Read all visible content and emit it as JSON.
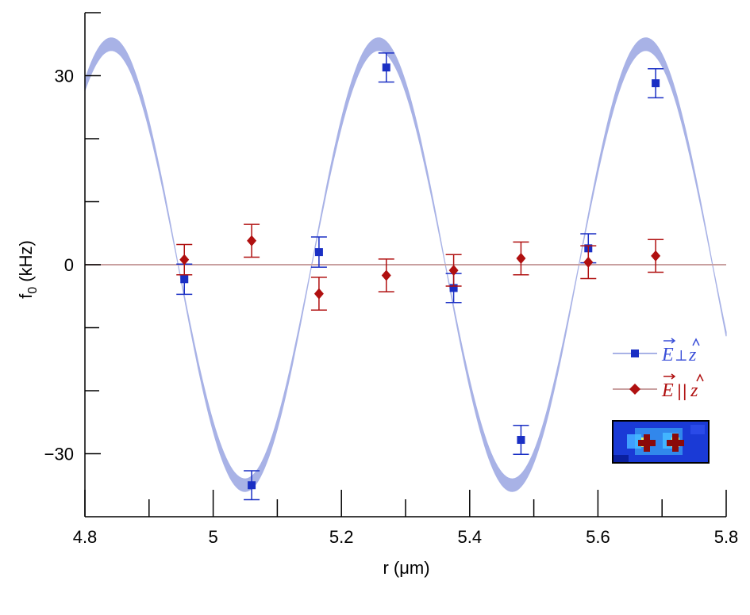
{
  "chart_data": {
    "type": "scatter",
    "xlabel": "r (μm)",
    "ylabel_main": "f",
    "ylabel_sub": "0",
    "ylabel_unit": " (kHz)",
    "xlim": [
      4.8,
      5.8
    ],
    "ylim": [
      -40,
      40
    ],
    "x_ticks": [
      {
        "value": 4.8,
        "label": "4.8"
      },
      {
        "value": 5.0,
        "label": "5"
      },
      {
        "value": 5.2,
        "label": "5.2"
      },
      {
        "value": 5.4,
        "label": "5.4"
      },
      {
        "value": 5.6,
        "label": "5.6"
      },
      {
        "value": 5.8,
        "label": "5.8"
      }
    ],
    "x_minor_ticks": [
      4.9,
      5.1,
      5.3,
      5.5,
      5.7
    ],
    "y_ticks": [
      {
        "value": 30,
        "label": "30"
      },
      {
        "value": 0,
        "label": "0"
      },
      {
        "value": -30,
        "label": "−30"
      }
    ],
    "y_minor_ticks": [
      20,
      10,
      -10,
      -20
    ],
    "fit_curve": {
      "amplitude_band": [
        34.0,
        36.0
      ],
      "period": 0.4167,
      "phase_origin": 4.8,
      "color": "#a8b2e6"
    },
    "series": [
      {
        "name": "E⃗ ⟂ ẑ",
        "legend_text_E": "E",
        "legend_text_rel": "⟂",
        "legend_text_z": "z",
        "marker": "square",
        "color": "#1a2fc4",
        "line_color": "#a8b2e6",
        "points": [
          {
            "x": 4.955,
            "y": -2.3,
            "err": 2.4
          },
          {
            "x": 5.06,
            "y": -35.0,
            "err": 2.3
          },
          {
            "x": 5.165,
            "y": 2.0,
            "err": 2.4
          },
          {
            "x": 5.27,
            "y": 31.3,
            "err": 2.3
          },
          {
            "x": 5.375,
            "y": -3.7,
            "err": 2.3
          },
          {
            "x": 5.48,
            "y": -27.8,
            "err": 2.3
          },
          {
            "x": 5.585,
            "y": 2.6,
            "err": 2.3
          },
          {
            "x": 5.69,
            "y": 28.8,
            "err": 2.3
          }
        ]
      },
      {
        "name": "E⃗ || ẑ",
        "legend_text_E": "E",
        "legend_text_rel": "||",
        "legend_text_z": "z",
        "marker": "diamond",
        "color": "#b01010",
        "line_color": "#c9a0a0",
        "points": [
          {
            "x": 4.955,
            "y": 0.8,
            "err": 2.4
          },
          {
            "x": 5.06,
            "y": 3.8,
            "err": 2.6
          },
          {
            "x": 5.165,
            "y": -4.6,
            "err": 2.6
          },
          {
            "x": 5.27,
            "y": -1.7,
            "err": 2.6
          },
          {
            "x": 5.375,
            "y": -0.9,
            "err": 2.5
          },
          {
            "x": 5.48,
            "y": 1.0,
            "err": 2.6
          },
          {
            "x": 5.585,
            "y": 0.4,
            "err": 2.6
          },
          {
            "x": 5.69,
            "y": 1.4,
            "err": 2.6
          }
        ]
      }
    ],
    "legend_position": "right",
    "inset_image": "heatmap-thumbnail"
  }
}
